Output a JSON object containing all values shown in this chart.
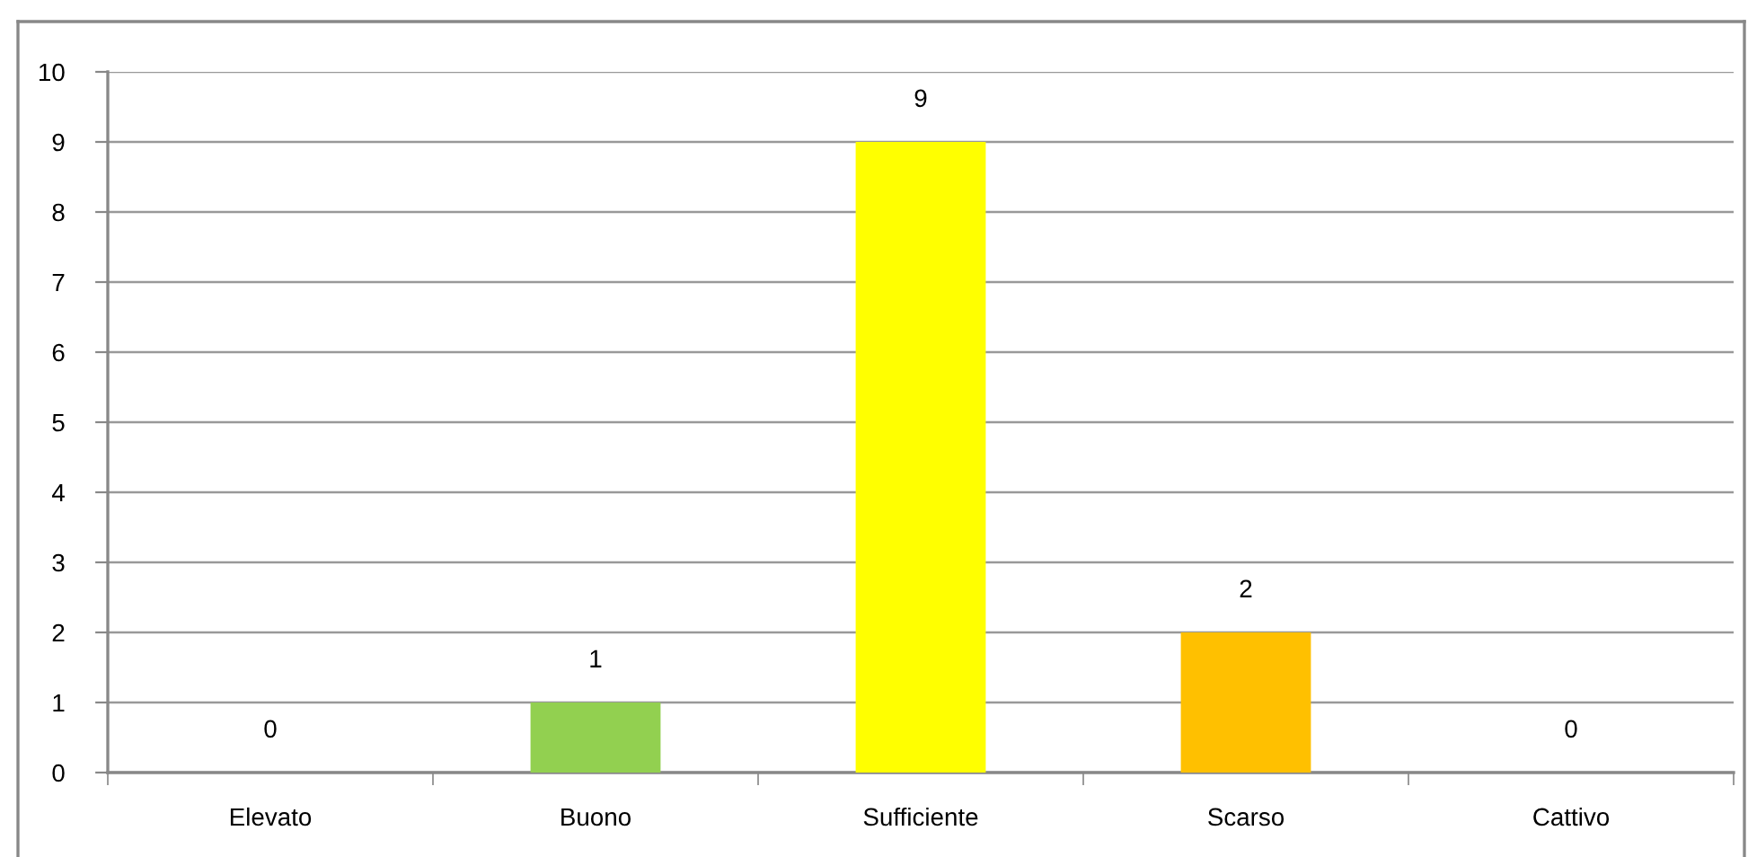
{
  "chart_data": {
    "type": "bar",
    "categories": [
      "Elevato",
      "Buono",
      "Sufficiente",
      "Scarso",
      "Cattivo"
    ],
    "values": [
      0,
      1,
      9,
      2,
      0
    ],
    "colors": [
      "#00b0f0",
      "#92d050",
      "#ffff00",
      "#ffc000",
      "#ff0000"
    ],
    "ylim": [
      0,
      10
    ],
    "yticks": [
      0,
      1,
      2,
      3,
      4,
      5,
      6,
      7,
      8,
      9,
      10
    ],
    "grid": "y",
    "data_labels": true,
    "legend": false
  }
}
